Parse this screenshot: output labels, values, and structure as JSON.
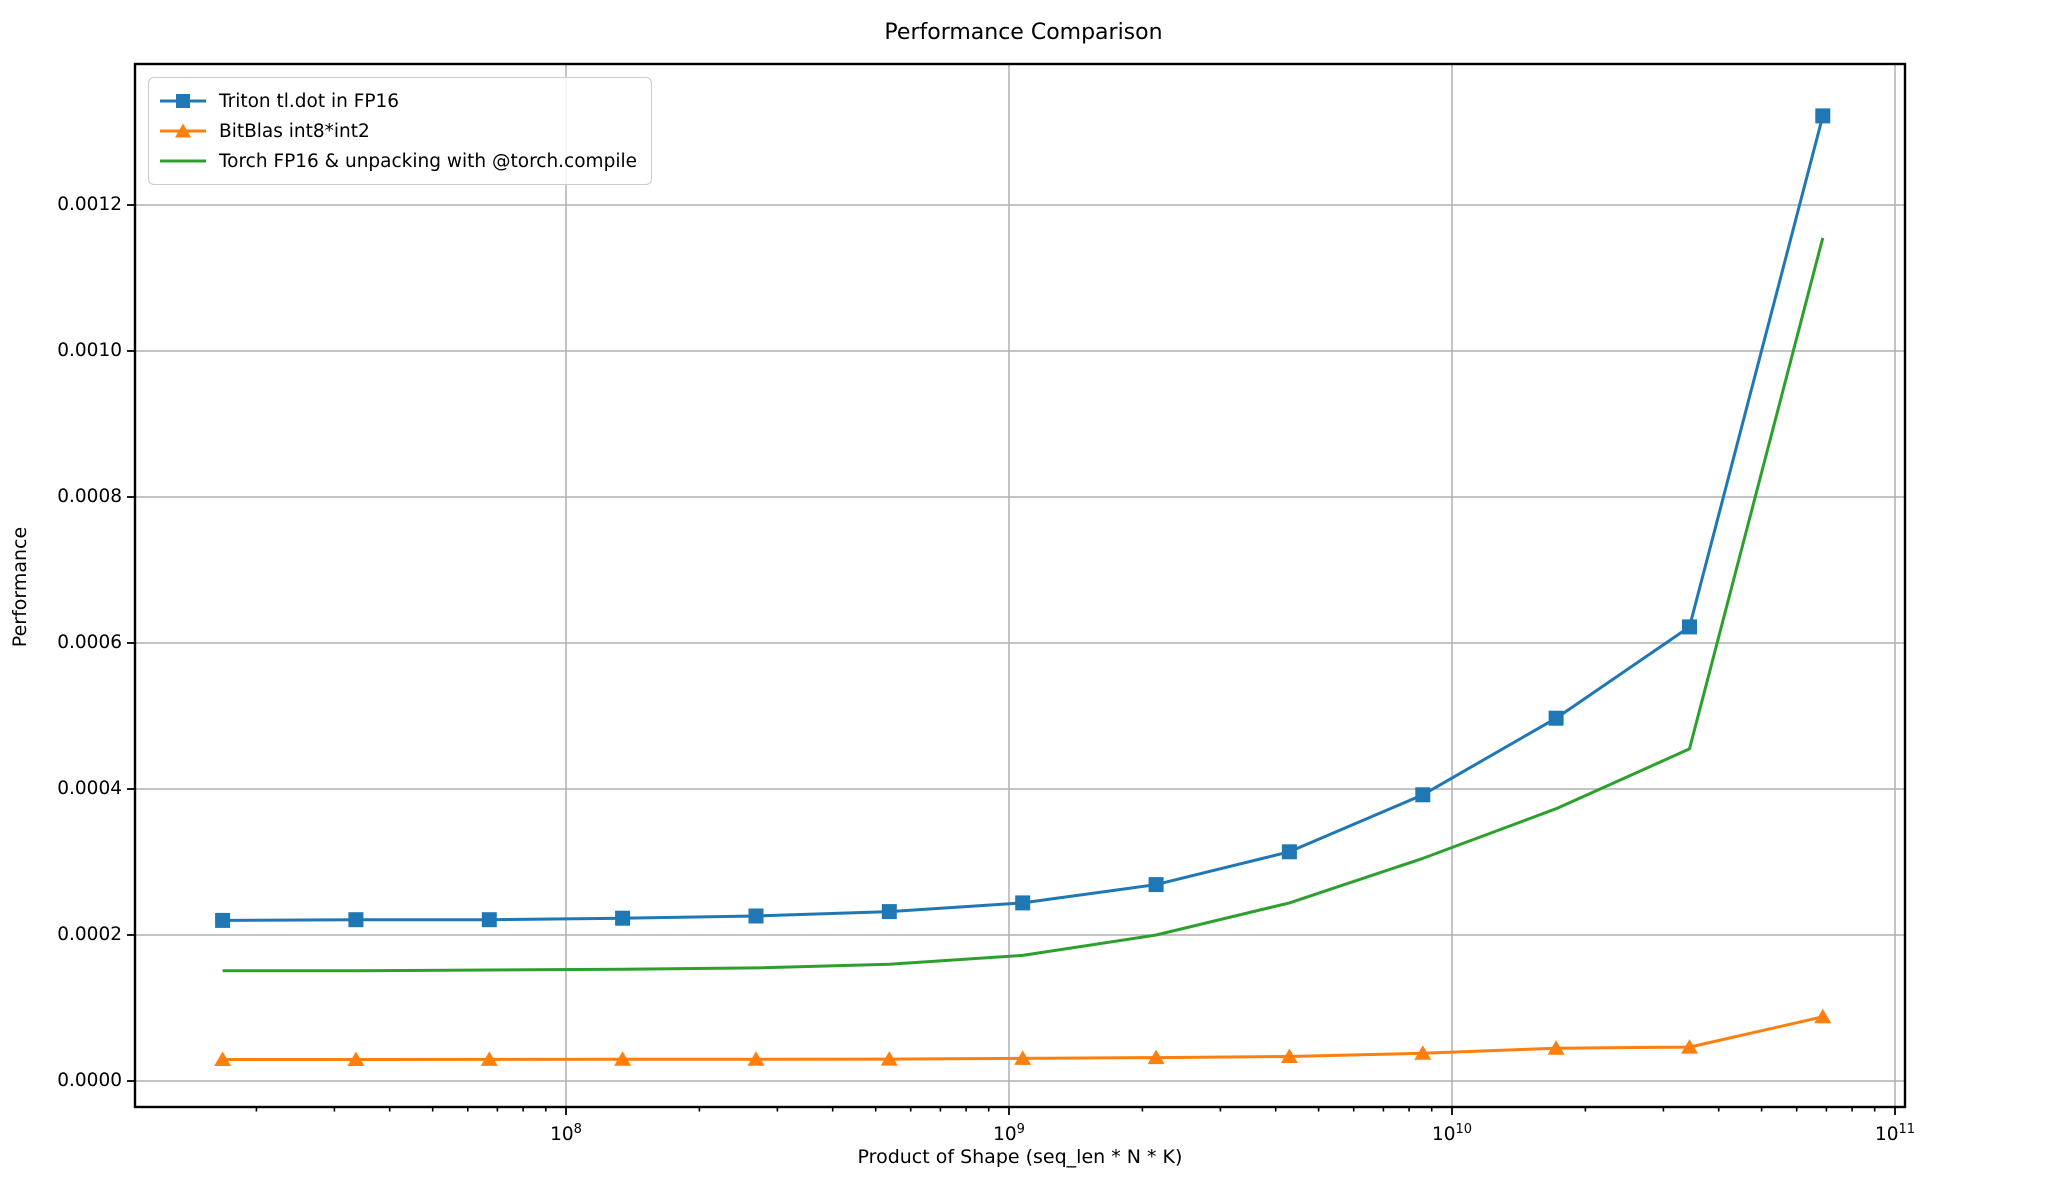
{
  "title": "Performance Comparison",
  "axes": {
    "xlabel": "Product of Shape (seq_len * N * K)",
    "ylabel": "Performance"
  },
  "colors": {
    "background": "#ffffff",
    "grid": "#b0b0b0",
    "spine": "#000000",
    "text": "#000000",
    "legend_border": "#cccccc"
  },
  "chart_data": {
    "type": "line",
    "title": "Performance Comparison",
    "xlabel": "Product of Shape (seq_len * N * K)",
    "ylabel": "Performance",
    "x_scale": "log",
    "grid": true,
    "legend_position": "upper left",
    "xlim": [
      10600000,
      105000000000
    ],
    "ylim": [
      -3.56e-05,
      0.001393
    ],
    "x": [
      16777216,
      33554432,
      67108864,
      134217728,
      268435456,
      536870912,
      1073741824,
      2147483648,
      4294967296,
      8589934592,
      17179869184,
      34359738368,
      68719476736
    ],
    "series": [
      {
        "name": "Triton tl.dot in FP16",
        "color": "#1f77b4",
        "marker": "square",
        "values": [
          0.00022,
          0.000221,
          0.000221,
          0.000223,
          0.000226,
          0.000232,
          0.000244,
          0.000269,
          0.000314,
          0.000392,
          0.000497,
          0.000622,
          0.001322
        ]
      },
      {
        "name": "BitBlas int8*int2",
        "color": "#ff7f0e",
        "marker": "triangle",
        "values": [
          2.95e-05,
          2.95e-05,
          2.96e-05,
          2.97e-05,
          2.98e-05,
          3e-05,
          3.1e-05,
          3.2e-05,
          3.35e-05,
          3.8e-05,
          4.5e-05,
          4.65e-05,
          8.8e-05
        ]
      },
      {
        "name": "Torch FP16 & unpacking with @torch.compile",
        "color": "#2ca02c",
        "marker": "none",
        "values": [
          0.000151,
          0.000151,
          0.000152,
          0.000153,
          0.000155,
          0.00016,
          0.000172,
          0.0002,
          0.000244,
          0.000305,
          0.000373,
          0.000455,
          0.001155
        ]
      }
    ],
    "y_ticks": [
      "0.0000",
      "0.0002",
      "0.0004",
      "0.0006",
      "0.0008",
      "0.0010",
      "0.0012"
    ],
    "y_tick_values": [
      0.0,
      0.0002,
      0.0004,
      0.0006,
      0.0008,
      0.001,
      0.0012
    ],
    "x_ticks": [
      {
        "base": "10",
        "exp": "8"
      },
      {
        "base": "10",
        "exp": "9"
      },
      {
        "base": "10",
        "exp": "10"
      },
      {
        "base": "10",
        "exp": "11"
      }
    ],
    "x_tick_values": [
      100000000,
      1000000000,
      10000000000,
      100000000000
    ]
  }
}
